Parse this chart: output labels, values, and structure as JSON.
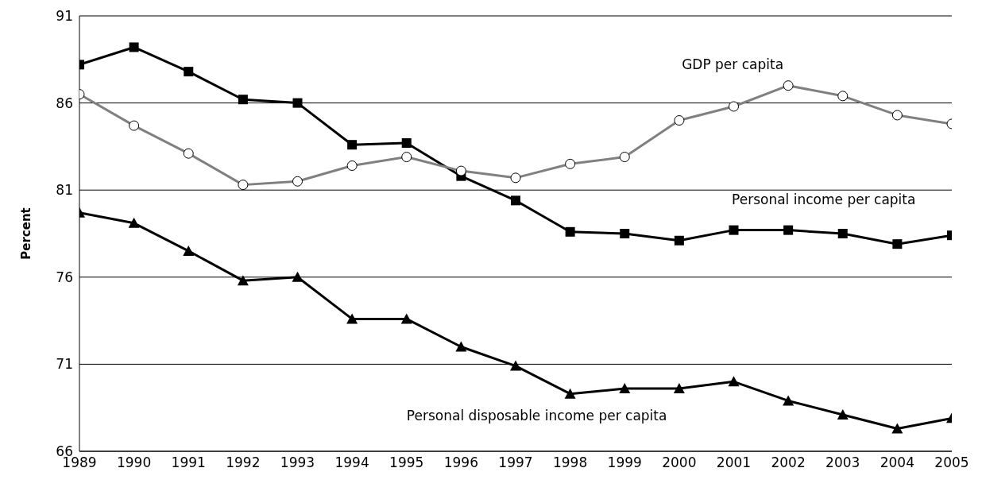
{
  "chart_data": {
    "type": "line",
    "ylabel": "Percent",
    "x": [
      1989,
      1990,
      1991,
      1992,
      1993,
      1994,
      1995,
      1996,
      1997,
      1998,
      1999,
      2000,
      2001,
      2002,
      2003,
      2004,
      2005
    ],
    "series": [
      {
        "name": "Personal income per capita",
        "color": "#000000",
        "marker": "square",
        "values": [
          88.2,
          89.2,
          87.8,
          86.2,
          86.0,
          83.6,
          83.7,
          81.8,
          80.4,
          78.6,
          78.5,
          78.1,
          78.7,
          78.7,
          78.5,
          77.9,
          78.4
        ]
      },
      {
        "name": "GDP per capita",
        "color": "#808080",
        "marker": "circle",
        "values": [
          86.5,
          84.7,
          83.1,
          81.3,
          81.5,
          82.4,
          82.9,
          82.1,
          81.7,
          82.5,
          82.9,
          85.0,
          85.8,
          87.0,
          86.4,
          85.3,
          84.8
        ]
      },
      {
        "name": "Personal disposable income per capita",
        "color": "#000000",
        "marker": "triangle",
        "values": [
          79.7,
          79.1,
          77.5,
          75.8,
          76.0,
          73.6,
          73.6,
          72.0,
          70.9,
          69.3,
          69.6,
          69.6,
          70.0,
          68.9,
          68.1,
          67.3,
          67.9
        ]
      }
    ],
    "xlim": [
      1989,
      2005
    ],
    "xticks": [
      1989,
      1990,
      1991,
      1992,
      1993,
      1994,
      1995,
      1996,
      1997,
      1998,
      1999,
      2000,
      2001,
      2002,
      2003,
      2004,
      2005
    ],
    "ylim": [
      66,
      91
    ],
    "yticks": [
      66,
      71,
      76,
      81,
      86,
      91
    ],
    "grid": "y",
    "line_style": "solid"
  }
}
